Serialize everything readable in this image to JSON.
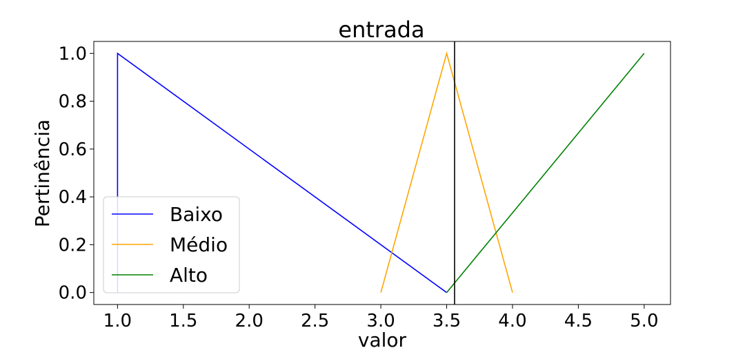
{
  "chart_data": {
    "type": "line",
    "title": "entrada",
    "xlabel": "valor",
    "ylabel": "Pertinência",
    "xlim": [
      0.82,
      5.2
    ],
    "ylim": [
      -0.05,
      1.05
    ],
    "xticks": [
      1.0,
      1.5,
      2.0,
      2.5,
      3.0,
      3.5,
      4.0,
      4.5,
      5.0
    ],
    "xtick_labels": [
      "1.0",
      "1.5",
      "2.0",
      "2.5",
      "3.0",
      "3.5",
      "4.0",
      "4.5",
      "5.0"
    ],
    "yticks": [
      0.0,
      0.2,
      0.4,
      0.6,
      0.8,
      1.0
    ],
    "ytick_labels": [
      "0.0",
      "0.2",
      "0.4",
      "0.6",
      "0.8",
      "1.0"
    ],
    "grid": false,
    "legend_position": "lower-left",
    "series": [
      {
        "name": "Baixo",
        "color": "#0000ff",
        "x": [
          1.0,
          1.0,
          3.5
        ],
        "y": [
          0.0,
          1.0,
          0.0
        ]
      },
      {
        "name": "Médio",
        "color": "#ffa500",
        "x": [
          3.0,
          3.5,
          4.0
        ],
        "y": [
          0.0,
          1.0,
          0.0
        ]
      },
      {
        "name": "Alto",
        "color": "#008000",
        "x": [
          3.5,
          5.0
        ],
        "y": [
          0.0,
          1.0
        ]
      }
    ],
    "vertical_line": {
      "x": 3.56,
      "color": "#000000"
    }
  }
}
